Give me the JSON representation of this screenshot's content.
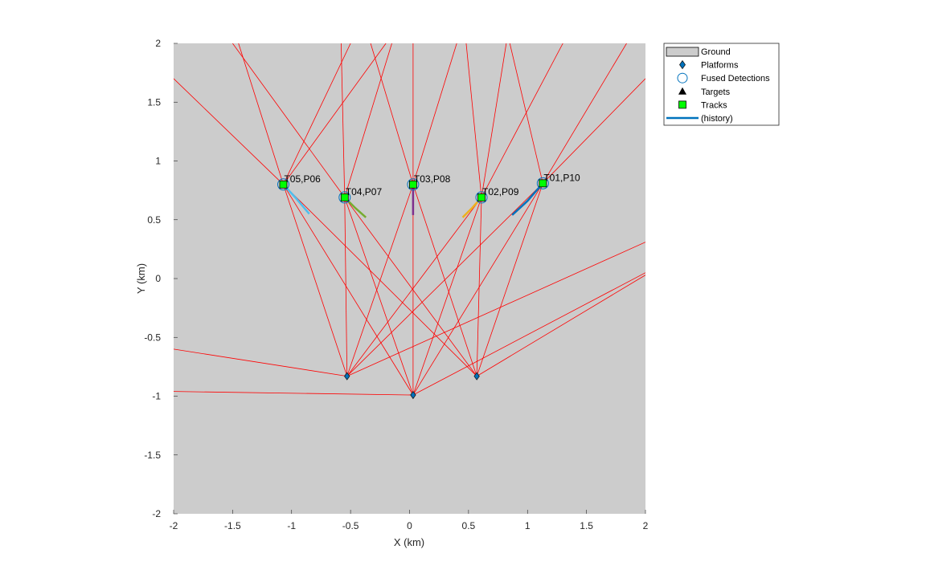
{
  "chart_data": {
    "type": "scatter",
    "title": "",
    "xlabel": "X (km)",
    "ylabel": "Y (km)",
    "xlim": [
      -2,
      2
    ],
    "ylim": [
      -2,
      2
    ],
    "xticks": [
      "-2",
      "-1.5",
      "-1",
      "-0.5",
      "0",
      "0.5",
      "1",
      "1.5",
      "2"
    ],
    "yticks": [
      "-2",
      "-1.5",
      "-1",
      "-0.5",
      "0",
      "0.5",
      "1",
      "1.5",
      "2"
    ],
    "background_color": "#cccccc",
    "beam_color": "#ff0000",
    "legend_position": "outside-top-right",
    "legend": [
      {
        "label": "Ground",
        "symbol": "rect"
      },
      {
        "label": "Platforms",
        "symbol": "diamond"
      },
      {
        "label": "Fused Detections",
        "symbol": "circle"
      },
      {
        "label": "Targets",
        "symbol": "triangle"
      },
      {
        "label": "Tracks",
        "symbol": "square"
      },
      {
        "label": "(history)",
        "symbol": "line"
      }
    ],
    "platforms": [
      {
        "x": -0.53,
        "y": -0.83
      },
      {
        "x": 0.03,
        "y": -0.99
      },
      {
        "x": 0.57,
        "y": -0.83
      }
    ],
    "tracks": [
      {
        "label": "T01,P10",
        "x": 1.13,
        "y": 0.81,
        "history_color": "#0072bd",
        "history": [
          [
            0.87,
            0.54
          ],
          [
            1.0,
            0.66
          ],
          [
            1.13,
            0.81
          ]
        ]
      },
      {
        "label": "T02,P09",
        "x": 0.61,
        "y": 0.69,
        "history_color": "#edb120",
        "history": [
          [
            0.45,
            0.52
          ],
          [
            0.53,
            0.6
          ],
          [
            0.61,
            0.69
          ]
        ]
      },
      {
        "label": "T03,P08",
        "x": 0.03,
        "y": 0.8,
        "history_color": "#7e2f8e",
        "history": [
          [
            0.03,
            0.54
          ],
          [
            0.03,
            0.67
          ],
          [
            0.03,
            0.8
          ]
        ]
      },
      {
        "label": "T04,P07",
        "x": -0.55,
        "y": 0.69,
        "history_color": "#77ac30",
        "history": [
          [
            -0.37,
            0.52
          ],
          [
            -0.46,
            0.6
          ],
          [
            -0.55,
            0.69
          ]
        ]
      },
      {
        "label": "T05,P06",
        "x": -1.07,
        "y": 0.8,
        "history_color": "#4dbeee",
        "history": [
          [
            -0.85,
            0.55
          ],
          [
            -0.96,
            0.68
          ],
          [
            -1.07,
            0.8
          ]
        ]
      }
    ],
    "beams": [
      {
        "from": [
          -0.53,
          -0.83
        ],
        "to": [
          -2.0,
          -0.6
        ]
      },
      {
        "from": [
          -0.53,
          -0.83
        ],
        "to": [
          2.0,
          0.31
        ]
      },
      {
        "from": [
          -0.53,
          -0.83
        ],
        "to": [
          -1.07,
          0.8
        ]
      },
      {
        "from": [
          -0.53,
          -0.83
        ],
        "to": [
          -0.55,
          0.69
        ]
      },
      {
        "from": [
          -0.53,
          -0.83
        ],
        "to": [
          0.03,
          0.8
        ]
      },
      {
        "from": [
          -0.53,
          -0.83
        ],
        "to": [
          0.61,
          0.69
        ]
      },
      {
        "from": [
          -0.53,
          -0.83
        ],
        "to": [
          1.13,
          0.81
        ]
      },
      {
        "from": [
          0.03,
          -0.99
        ],
        "to": [
          -2.0,
          -0.96
        ]
      },
      {
        "from": [
          0.03,
          -0.99
        ],
        "to": [
          2.0,
          0.05
        ]
      },
      {
        "from": [
          0.03,
          -0.99
        ],
        "to": [
          -1.07,
          0.8
        ]
      },
      {
        "from": [
          0.03,
          -0.99
        ],
        "to": [
          -0.55,
          0.69
        ]
      },
      {
        "from": [
          0.03,
          -0.99
        ],
        "to": [
          0.03,
          0.8
        ]
      },
      {
        "from": [
          0.03,
          -0.99
        ],
        "to": [
          0.61,
          0.69
        ]
      },
      {
        "from": [
          0.03,
          -0.99
        ],
        "to": [
          1.13,
          0.81
        ]
      },
      {
        "from": [
          0.57,
          -0.83
        ],
        "to": [
          2.0,
          0.03
        ]
      },
      {
        "from": [
          0.57,
          -0.83
        ],
        "to": [
          -1.07,
          0.8
        ]
      },
      {
        "from": [
          0.57,
          -0.83
        ],
        "to": [
          -0.55,
          0.69
        ]
      },
      {
        "from": [
          0.57,
          -0.83
        ],
        "to": [
          0.03,
          0.8
        ]
      },
      {
        "from": [
          0.57,
          -0.83
        ],
        "to": [
          0.61,
          0.69
        ]
      },
      {
        "from": [
          0.57,
          -0.83
        ],
        "to": [
          1.13,
          0.81
        ]
      },
      {
        "from": [
          -1.07,
          0.8
        ],
        "to": [
          -2.0,
          1.7
        ]
      },
      {
        "from": [
          -1.07,
          0.8
        ],
        "to": [
          -1.45,
          2.0
        ]
      },
      {
        "from": [
          -1.07,
          0.8
        ],
        "to": [
          -0.5,
          2.0
        ]
      },
      {
        "from": [
          -1.07,
          0.8
        ],
        "to": [
          -0.2,
          2.0
        ]
      },
      {
        "from": [
          -0.55,
          0.69
        ],
        "to": [
          -1.5,
          2.0
        ]
      },
      {
        "from": [
          -0.55,
          0.69
        ],
        "to": [
          -0.58,
          2.0
        ]
      },
      {
        "from": [
          -0.55,
          0.69
        ],
        "to": [
          -0.15,
          2.0
        ]
      },
      {
        "from": [
          0.03,
          0.8
        ],
        "to": [
          -0.33,
          2.0
        ]
      },
      {
        "from": [
          0.03,
          0.8
        ],
        "to": [
          0.03,
          2.0
        ]
      },
      {
        "from": [
          0.03,
          0.8
        ],
        "to": [
          0.4,
          2.0
        ]
      },
      {
        "from": [
          0.61,
          0.69
        ],
        "to": [
          0.48,
          2.0
        ]
      },
      {
        "from": [
          0.61,
          0.69
        ],
        "to": [
          0.82,
          2.0
        ]
      },
      {
        "from": [
          0.61,
          0.69
        ],
        "to": [
          1.3,
          2.0
        ]
      },
      {
        "from": [
          1.13,
          0.81
        ],
        "to": [
          0.85,
          2.0
        ]
      },
      {
        "from": [
          1.13,
          0.81
        ],
        "to": [
          1.84,
          2.0
        ]
      },
      {
        "from": [
          1.13,
          0.81
        ],
        "to": [
          2.0,
          1.7
        ]
      }
    ]
  }
}
